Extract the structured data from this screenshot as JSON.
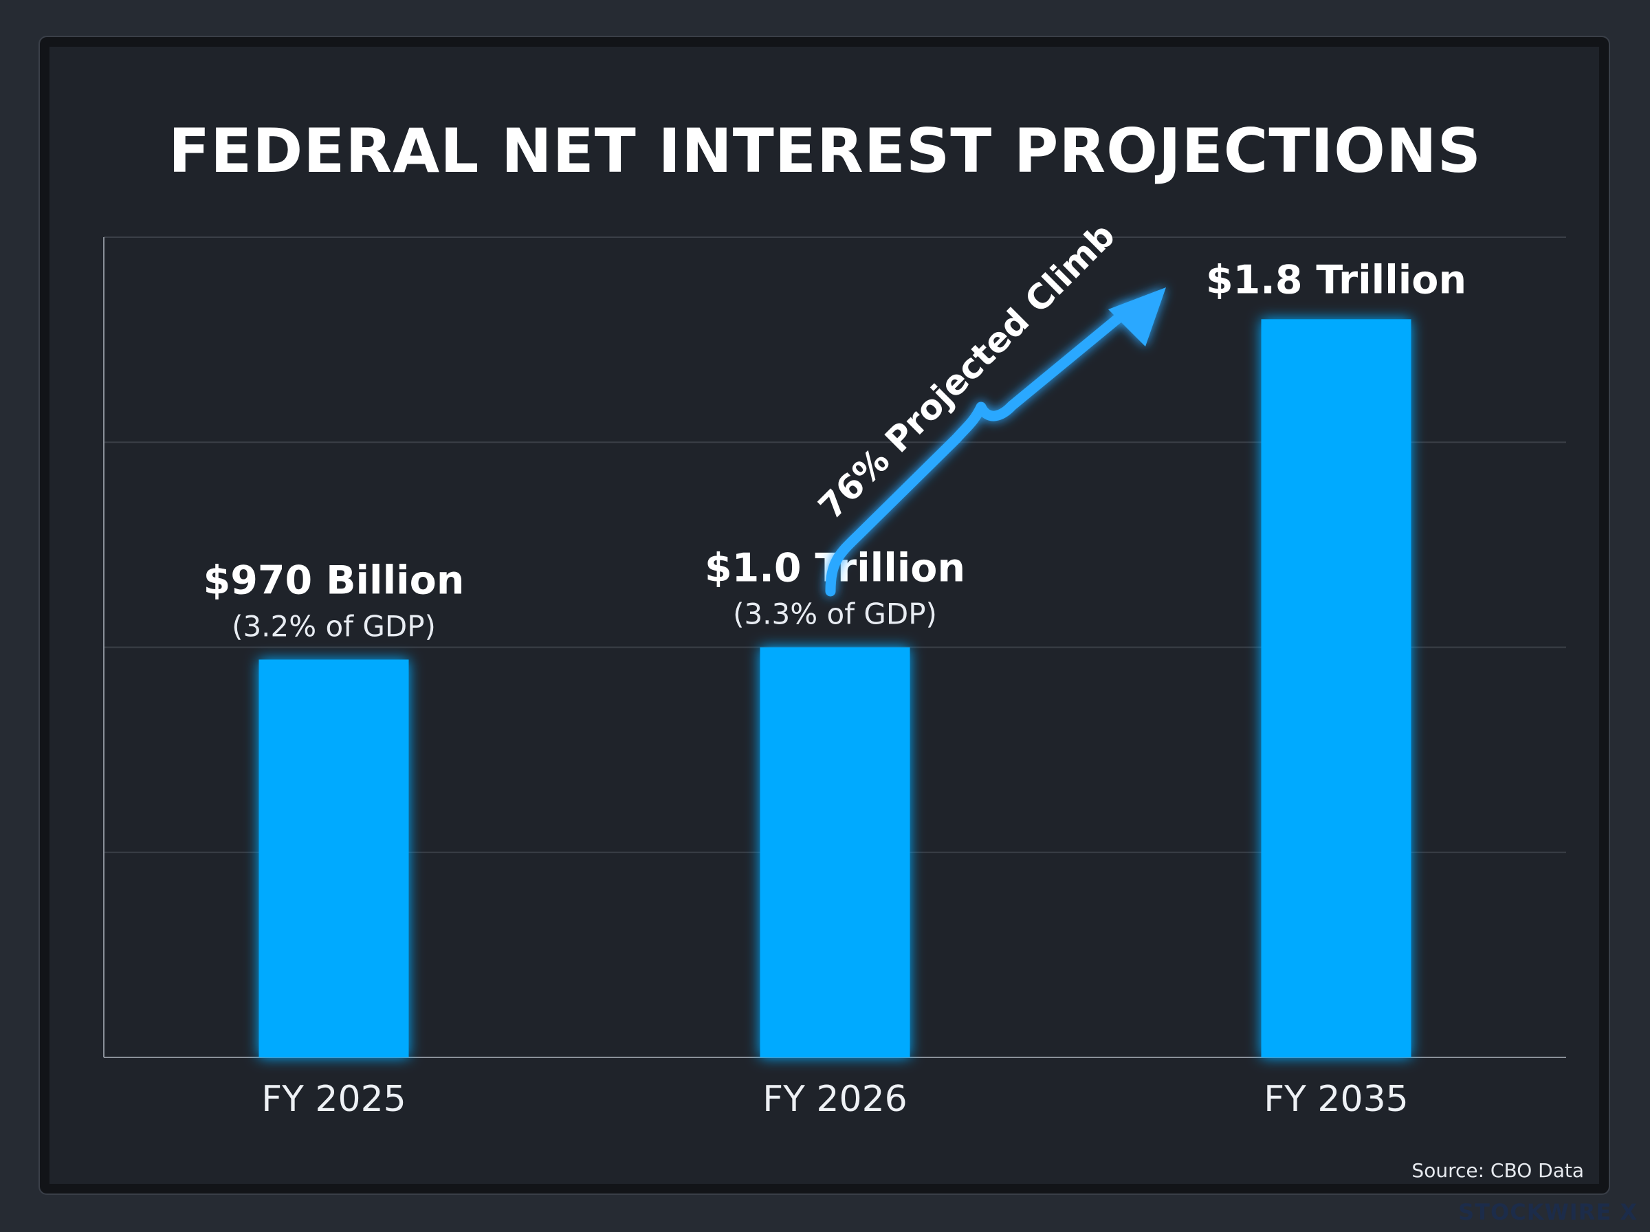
{
  "chart_data": {
    "type": "bar",
    "title": "FEDERAL NET INTEREST PROJECTIONS",
    "categories": [
      "FY 2025",
      "FY 2026",
      "FY 2035"
    ],
    "values": [
      0.97,
      1.0,
      1.8
    ],
    "units": "trillion USD",
    "ylim": [
      0,
      2.0
    ],
    "grid": true,
    "value_labels": [
      "$970 Billion",
      "$1.0 Trillion",
      "$1.8 Trillion"
    ],
    "sub_labels": [
      "(3.2% of GDP)",
      "(3.3% of GDP)",
      ""
    ],
    "annotation": "76% Projected Climb",
    "source": "Source: CBO Data"
  },
  "watermark": "STOCKWIRE X",
  "colors": {
    "bar": "#00aaff",
    "glow": "#1a9fff",
    "arrow": "#2aa8ff",
    "gridline": "#3a3f47",
    "axis": "#8a9099",
    "background": "#1f232a"
  }
}
